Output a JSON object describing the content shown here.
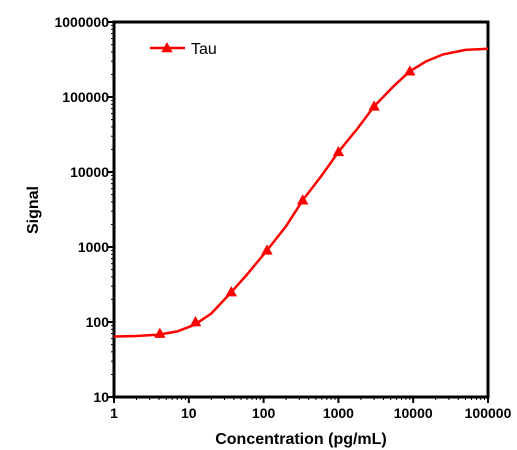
{
  "chart_data": {
    "type": "line",
    "title": "",
    "xlabel": "Concentration (pg/mL)",
    "ylabel": "Signal",
    "x_scale": "log",
    "y_scale": "log",
    "xlim": [
      1,
      100000
    ],
    "ylim": [
      10,
      1000000
    ],
    "x_ticks": [
      "1",
      "10",
      "100",
      "1000",
      "10000",
      "100000"
    ],
    "y_ticks": [
      "10",
      "100",
      "1000",
      "10000",
      "100000",
      "1000000"
    ],
    "grid": false,
    "legend_position": "top-left",
    "series": [
      {
        "name": "Tau",
        "color": "#ff0000",
        "marker": "triangle",
        "points": [
          {
            "x": 4.1,
            "y": 70
          },
          {
            "x": 12.3,
            "y": 100
          },
          {
            "x": 37,
            "y": 250
          },
          {
            "x": 111,
            "y": 900
          },
          {
            "x": 333,
            "y": 4200
          },
          {
            "x": 1000,
            "y": 18500
          },
          {
            "x": 3000,
            "y": 75000
          },
          {
            "x": 9000,
            "y": 220000
          }
        ],
        "fit_curve": [
          {
            "x": 1,
            "y": 64
          },
          {
            "x": 2,
            "y": 65
          },
          {
            "x": 4,
            "y": 68
          },
          {
            "x": 7,
            "y": 75
          },
          {
            "x": 12,
            "y": 92
          },
          {
            "x": 20,
            "y": 130
          },
          {
            "x": 37,
            "y": 250
          },
          {
            "x": 60,
            "y": 430
          },
          {
            "x": 111,
            "y": 900
          },
          {
            "x": 200,
            "y": 1900
          },
          {
            "x": 333,
            "y": 4200
          },
          {
            "x": 600,
            "y": 9000
          },
          {
            "x": 1000,
            "y": 18500
          },
          {
            "x": 1800,
            "y": 38000
          },
          {
            "x": 3000,
            "y": 75000
          },
          {
            "x": 5500,
            "y": 140000
          },
          {
            "x": 9000,
            "y": 220000
          },
          {
            "x": 15000,
            "y": 300000
          },
          {
            "x": 25000,
            "y": 370000
          },
          {
            "x": 50000,
            "y": 425000
          },
          {
            "x": 100000,
            "y": 440000
          }
        ]
      }
    ]
  }
}
